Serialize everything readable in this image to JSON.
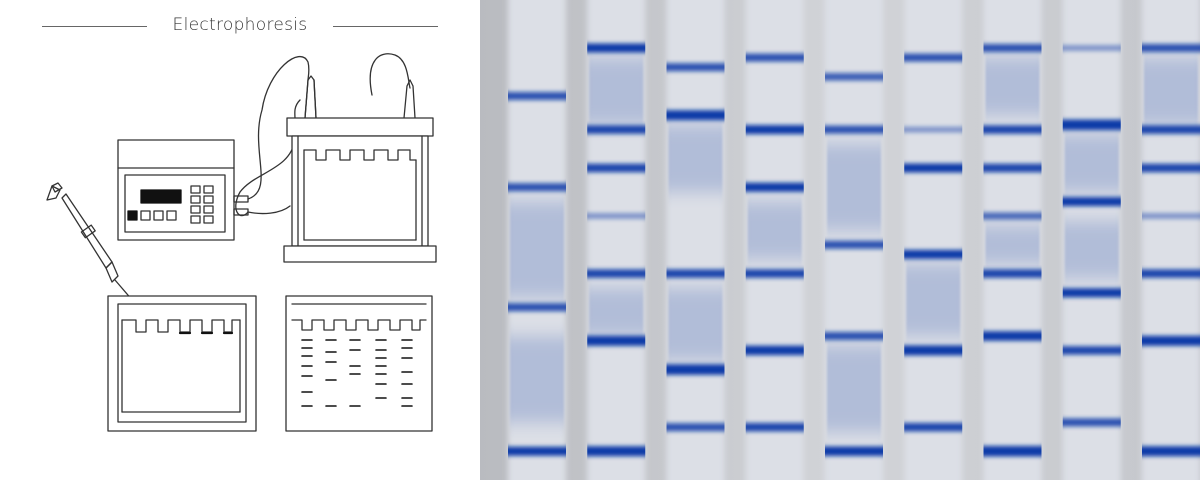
{
  "illustration": {
    "title": "Electrophoresis"
  },
  "colors": {
    "line": "#333333",
    "band": "#0a3aa8",
    "gel_bg": "#cfd1d6",
    "lane_bg": "#dcdfe6"
  },
  "icons": [
    "power-supply-icon",
    "pipette-icon",
    "gel-tank-icon",
    "gel-plate-icon",
    "gel-result-icon"
  ],
  "gel": {
    "lanes": [
      {
        "bands": [
          {
            "pos": 0.2,
            "w": 0.8
          },
          {
            "pos": 0.39,
            "w": 0.8
          },
          {
            "pos": 0.64,
            "w": 0.8
          },
          {
            "pos": 0.94,
            "w": 1
          }
        ],
        "smears": [
          {
            "from": 0.42,
            "to": 0.62
          },
          {
            "from": 0.7,
            "to": 0.88
          }
        ]
      },
      {
        "bands": [
          {
            "pos": 0.1,
            "w": 1
          },
          {
            "pos": 0.27,
            "w": 0.9
          },
          {
            "pos": 0.35,
            "w": 0.9
          },
          {
            "pos": 0.45,
            "w": 0.3
          },
          {
            "pos": 0.57,
            "w": 0.9
          },
          {
            "pos": 0.71,
            "w": 1.2
          },
          {
            "pos": 0.94,
            "w": 1.2
          }
        ],
        "smears": [
          {
            "from": 0.12,
            "to": 0.26
          },
          {
            "from": 0.6,
            "to": 0.7
          }
        ]
      },
      {
        "bands": [
          {
            "pos": 0.14,
            "w": 0.8
          },
          {
            "pos": 0.24,
            "w": 1.2
          },
          {
            "pos": 0.57,
            "w": 0.9
          },
          {
            "pos": 0.77,
            "w": 1.3
          },
          {
            "pos": 0.89,
            "w": 0.8
          }
        ],
        "smears": [
          {
            "from": 0.26,
            "to": 0.4
          },
          {
            "from": 0.6,
            "to": 0.75
          }
        ]
      },
      {
        "bands": [
          {
            "pos": 0.12,
            "w": 0.8
          },
          {
            "pos": 0.27,
            "w": 1
          },
          {
            "pos": 0.39,
            "w": 1
          },
          {
            "pos": 0.57,
            "w": 0.9
          },
          {
            "pos": 0.73,
            "w": 1.1
          },
          {
            "pos": 0.89,
            "w": 0.9
          }
        ],
        "smears": [
          {
            "from": 0.42,
            "to": 0.54
          }
        ]
      },
      {
        "bands": [
          {
            "pos": 0.16,
            "w": 0.7
          },
          {
            "pos": 0.27,
            "w": 0.8
          },
          {
            "pos": 0.51,
            "w": 0.8
          },
          {
            "pos": 0.7,
            "w": 0.8
          },
          {
            "pos": 0.94,
            "w": 1.1
          }
        ],
        "smears": [
          {
            "from": 0.3,
            "to": 0.48
          },
          {
            "from": 0.72,
            "to": 0.9
          }
        ]
      },
      {
        "bands": [
          {
            "pos": 0.12,
            "w": 0.8
          },
          {
            "pos": 0.27,
            "w": 0.3
          },
          {
            "pos": 0.35,
            "w": 1
          },
          {
            "pos": 0.53,
            "w": 1
          },
          {
            "pos": 0.73,
            "w": 1.2
          },
          {
            "pos": 0.89,
            "w": 0.9
          }
        ],
        "smears": [
          {
            "from": 0.55,
            "to": 0.7
          }
        ]
      },
      {
        "bands": [
          {
            "pos": 0.1,
            "w": 0.8
          },
          {
            "pos": 0.27,
            "w": 0.9
          },
          {
            "pos": 0.35,
            "w": 0.9
          },
          {
            "pos": 0.45,
            "w": 0.6
          },
          {
            "pos": 0.57,
            "w": 0.9
          },
          {
            "pos": 0.7,
            "w": 1.1
          },
          {
            "pos": 0.94,
            "w": 1.3
          }
        ],
        "smears": [
          {
            "from": 0.12,
            "to": 0.24
          },
          {
            "from": 0.47,
            "to": 0.55
          }
        ]
      },
      {
        "bands": [
          {
            "pos": 0.1,
            "w": 0.3
          },
          {
            "pos": 0.26,
            "w": 1.3
          },
          {
            "pos": 0.42,
            "w": 1
          },
          {
            "pos": 0.61,
            "w": 1
          },
          {
            "pos": 0.73,
            "w": 0.9
          },
          {
            "pos": 0.88,
            "w": 0.8
          }
        ],
        "smears": [
          {
            "from": 0.28,
            "to": 0.4
          },
          {
            "from": 0.46,
            "to": 0.58
          }
        ]
      },
      {
        "bands": [
          {
            "pos": 0.1,
            "w": 0.8
          },
          {
            "pos": 0.27,
            "w": 0.9
          },
          {
            "pos": 0.35,
            "w": 0.9
          },
          {
            "pos": 0.45,
            "w": 0.3
          },
          {
            "pos": 0.57,
            "w": 0.9
          },
          {
            "pos": 0.71,
            "w": 1.2
          },
          {
            "pos": 0.94,
            "w": 1.2
          }
        ],
        "smears": [
          {
            "from": 0.12,
            "to": 0.26
          }
        ]
      }
    ]
  }
}
